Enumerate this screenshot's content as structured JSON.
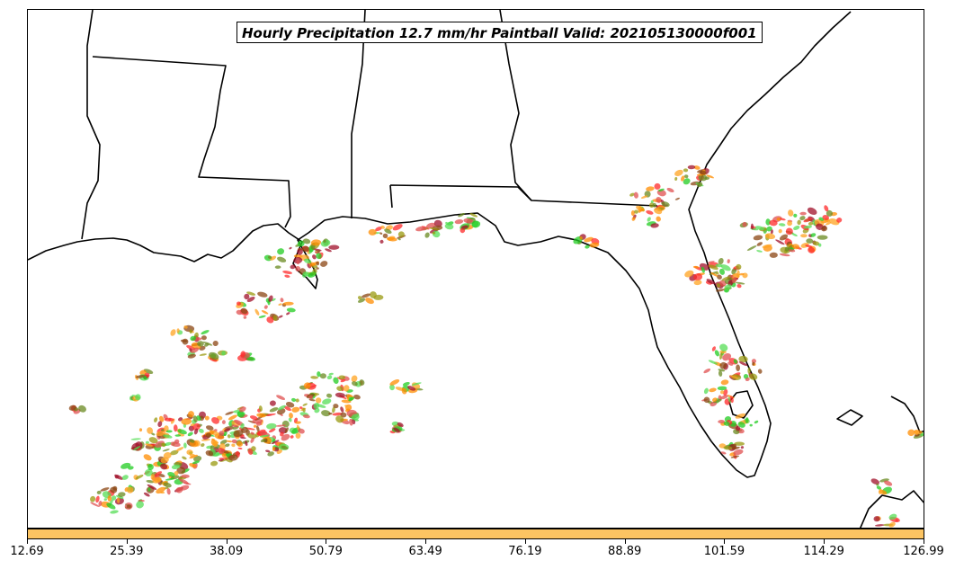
{
  "title": "Hourly Precipitation 12.7 mm/hr Paintball Valid: 202105130000f001",
  "colors": {
    "colorbar": "#fcc462",
    "member_colors": [
      "#ff8c00",
      "#ffa320",
      "#ff2a2a",
      "#e05050",
      "#22cc22",
      "#55dd55",
      "#9a9a10",
      "#8b4513",
      "#a0102a",
      "#6a8a20"
    ],
    "coastline": "#000000"
  },
  "colorbar": {
    "ticks": [
      "12.69",
      "25.39",
      "38.09",
      "50.79",
      "63.49",
      "76.19",
      "88.89",
      "101.59",
      "114.29",
      "126.99"
    ]
  }
}
